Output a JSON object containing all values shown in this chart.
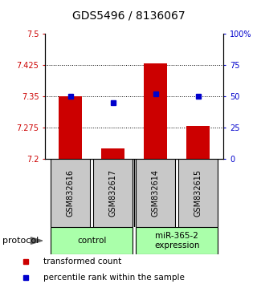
{
  "title": "GDS5496 / 8136067",
  "samples": [
    "GSM832616",
    "GSM832617",
    "GSM832614",
    "GSM832615"
  ],
  "bar_values": [
    7.35,
    7.225,
    7.43,
    7.28
  ],
  "percentile_values": [
    50,
    45,
    52,
    50
  ],
  "bar_color": "#cc0000",
  "dot_color": "#0000cc",
  "ymin": 7.2,
  "ymax": 7.5,
  "yticks": [
    7.2,
    7.275,
    7.35,
    7.425,
    7.5
  ],
  "ytick_labels": [
    "7.2",
    "7.275",
    "7.35",
    "7.425",
    "7.5"
  ],
  "y2ticks": [
    0,
    25,
    50,
    75,
    100
  ],
  "y2tick_labels": [
    "0",
    "25",
    "50",
    "75",
    "100%"
  ],
  "grid_values": [
    7.275,
    7.35,
    7.425
  ],
  "legend_items": [
    "transformed count",
    "percentile rank within the sample"
  ],
  "protocol_label": "protocol",
  "sample_box_color": "#c8c8c8",
  "group_box_color": "#aaffaa",
  "group1_label": "control",
  "group2_label": "miR-365-2\nexpression",
  "title_fontsize": 10,
  "tick_fontsize": 7,
  "sample_fontsize": 7,
  "group_fontsize": 7.5,
  "legend_fontsize": 7.5,
  "protocol_fontsize": 8
}
